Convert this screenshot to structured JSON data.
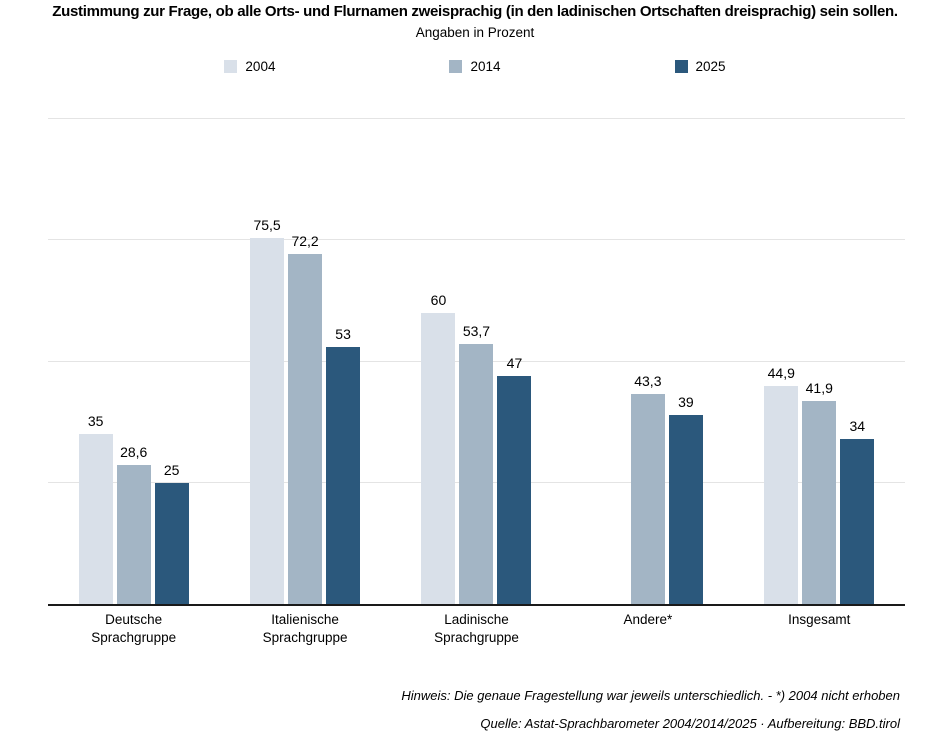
{
  "chart_data": {
    "type": "bar",
    "title": "Zustimmung zur Frage, ob alle Orts- und Flurnamen zweisprachig (in den ladinischen Ortschaften dreisprachig) sein sollen.",
    "subtitle": "Angaben in Prozent",
    "categories": [
      "Deutsche Sprachgruppe",
      "Italienische Sprachgruppe",
      "Ladinische Sprachgruppe",
      "Andere*",
      "Insgesamt"
    ],
    "series": [
      {
        "name": "2004",
        "color": "#d9e0e9",
        "values": [
          35,
          75.5,
          60,
          null,
          44.9
        ],
        "labels": [
          "35",
          "75,5",
          "60",
          "",
          "44,9"
        ]
      },
      {
        "name": "2014",
        "color": "#a3b5c5",
        "values": [
          28.6,
          72.2,
          53.7,
          43.3,
          41.9
        ],
        "labels": [
          "28,6",
          "72,2",
          "53,7",
          "43,3",
          "41,9"
        ]
      },
      {
        "name": "2025",
        "color": "#2b587c",
        "values": [
          25,
          53,
          47,
          39,
          34
        ],
        "labels": [
          "25",
          "53",
          "47",
          "39",
          "34"
        ]
      }
    ],
    "ylim": [
      0,
      100
    ],
    "gridlines": [
      25,
      50,
      75,
      100
    ],
    "grid_color": "#e4e4e4",
    "axis_color": "#1a1a1a",
    "legend_position": "top",
    "xlabel": "",
    "ylabel": "",
    "note": "Hinweis: Die genaue Fragestellung war jeweils unterschiedlich. - *) 2004 nicht erhoben",
    "source": "Quelle: Astat-Sprachbarometer 2004/2014/2025 · Aufbereitung: BBD.tirol"
  }
}
